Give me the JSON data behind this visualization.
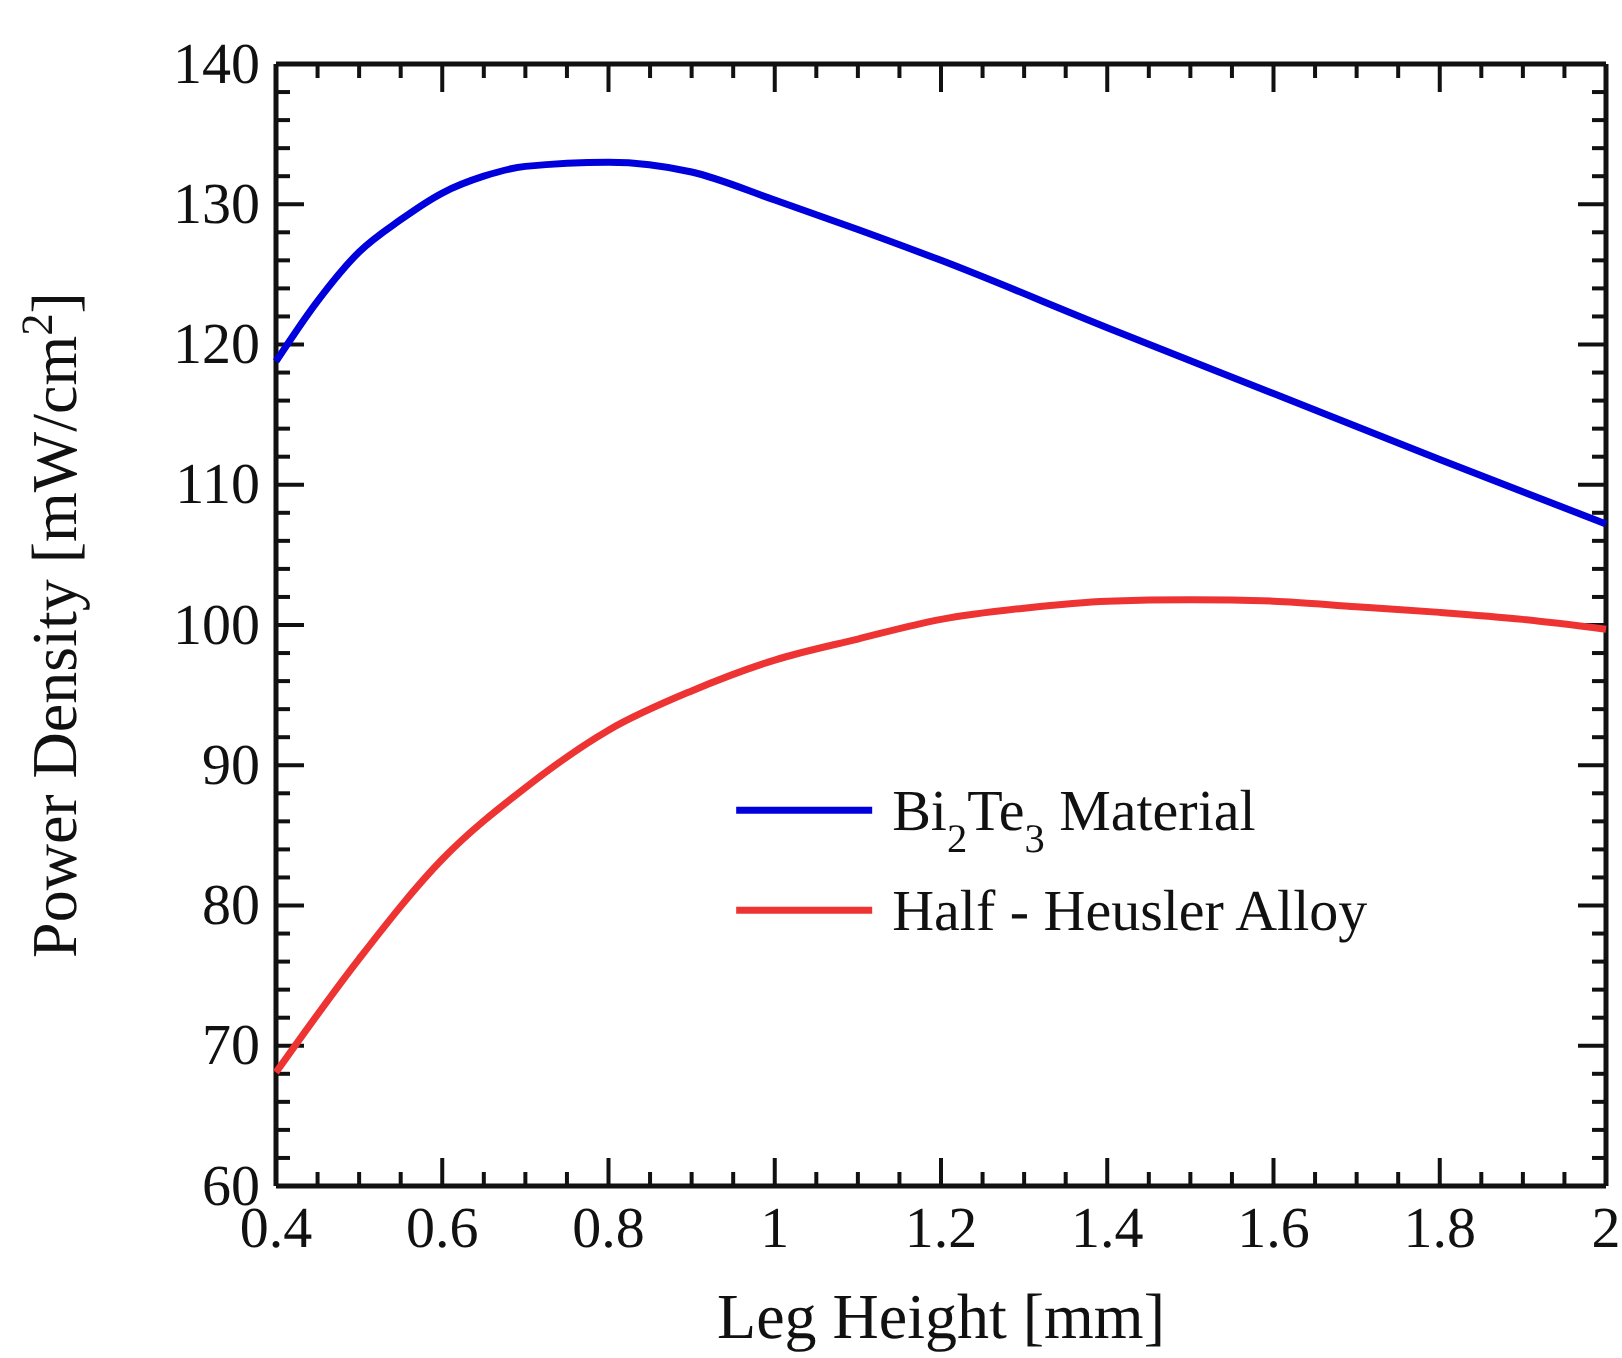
{
  "chart_data": {
    "type": "line",
    "xlabel": "Leg Height [mm]",
    "ylabel": "Power Density [mW/cm$^{2}$]",
    "xlim": [
      0.4,
      2
    ],
    "ylim": [
      60,
      140
    ],
    "xticks": [
      0.4,
      {
        "value": 0.45,
        "label": null
      },
      {
        "value": 0.5,
        "label": null
      },
      {
        "value": 0.55,
        "label": null
      },
      0.6,
      {
        "value": 0.65,
        "label": null
      },
      {
        "value": 0.7,
        "label": null
      },
      {
        "value": 0.75,
        "label": null
      },
      0.8,
      {
        "value": 0.85,
        "label": null
      },
      {
        "value": 0.9,
        "label": null
      },
      {
        "value": 0.95,
        "label": null
      },
      1,
      {
        "value": 1.05,
        "label": null
      },
      {
        "value": 1.1,
        "label": null
      },
      {
        "value": 1.15,
        "label": null
      },
      1.2,
      {
        "value": 1.25,
        "label": null
      },
      {
        "value": 1.3,
        "label": null
      },
      {
        "value": 1.35,
        "label": null
      },
      1.4,
      {
        "value": 1.45,
        "label": null
      },
      {
        "value": 1.5,
        "label": null
      },
      {
        "value": 1.55,
        "label": null
      },
      1.6,
      {
        "value": 1.65,
        "label": null
      },
      {
        "value": 1.7,
        "label": null
      },
      {
        "value": 1.75,
        "label": null
      },
      1.8,
      {
        "value": 1.85,
        "label": null
      },
      {
        "value": 1.9,
        "label": null
      },
      {
        "value": 1.95,
        "label": null
      },
      2
    ],
    "yticks": [
      60,
      {
        "value": 62,
        "label": null
      },
      {
        "value": 64,
        "label": null
      },
      {
        "value": 66,
        "label": null
      },
      {
        "value": 68,
        "label": null
      },
      70,
      {
        "value": 72,
        "label": null
      },
      {
        "value": 74,
        "label": null
      },
      {
        "value": 76,
        "label": null
      },
      {
        "value": 78,
        "label": null
      },
      80,
      {
        "value": 82,
        "label": null
      },
      {
        "value": 84,
        "label": null
      },
      {
        "value": 86,
        "label": null
      },
      {
        "value": 88,
        "label": null
      },
      90,
      {
        "value": 92,
        "label": null
      },
      {
        "value": 94,
        "label": null
      },
      {
        "value": 96,
        "label": null
      },
      {
        "value": 98,
        "label": null
      },
      100,
      {
        "value": 102,
        "label": null
      },
      {
        "value": 104,
        "label": null
      },
      {
        "value": 106,
        "label": null
      },
      {
        "value": 108,
        "label": null
      },
      110,
      {
        "value": 112,
        "label": null
      },
      {
        "value": 114,
        "label": null
      },
      {
        "value": 116,
        "label": null
      },
      {
        "value": 118,
        "label": null
      },
      120,
      {
        "value": 122,
        "label": null
      },
      {
        "value": 124,
        "label": null
      },
      {
        "value": 126,
        "label": null
      },
      {
        "value": 128,
        "label": null
      },
      130,
      {
        "value": 132,
        "label": null
      },
      {
        "value": 134,
        "label": null
      },
      {
        "value": 136,
        "label": null
      },
      {
        "value": 138,
        "label": null
      },
      140
    ],
    "grid": false,
    "legend": "right",
    "marker": "none",
    "line_style": "solid",
    "series": [
      {
        "name": "Bi$_{2}$Te$_{3}$ Material",
        "color": "#0000dd",
        "x": [
          0.4,
          0.45,
          0.5,
          0.55,
          0.6,
          0.65,
          0.7,
          0.8,
          0.9,
          1.0,
          1.1,
          1.2,
          1.4,
          1.6,
          1.8,
          2.0
        ],
        "values": [
          118.8,
          123.1,
          126.6,
          128.9,
          130.8,
          132,
          132.7,
          133,
          132.3,
          130.3,
          128.2,
          126,
          121.2,
          116.5,
          111.8,
          107.2
        ]
      },
      {
        "name": "Half - Heusler Alloy",
        "color": "#ee3333",
        "x": [
          0.4,
          0.5,
          0.6,
          0.7,
          0.8,
          0.9,
          1.0,
          1.1,
          1.2,
          1.3,
          1.4,
          1.5,
          1.6,
          1.7,
          1.8,
          1.9,
          2.0
        ],
        "values": [
          68.1,
          76.2,
          83.3,
          88.4,
          92.5,
          95.3,
          97.5,
          99,
          100.4,
          101.2,
          101.7,
          101.8,
          101.7,
          101.3,
          100.9,
          100.4,
          99.7
        ]
      }
    ]
  }
}
